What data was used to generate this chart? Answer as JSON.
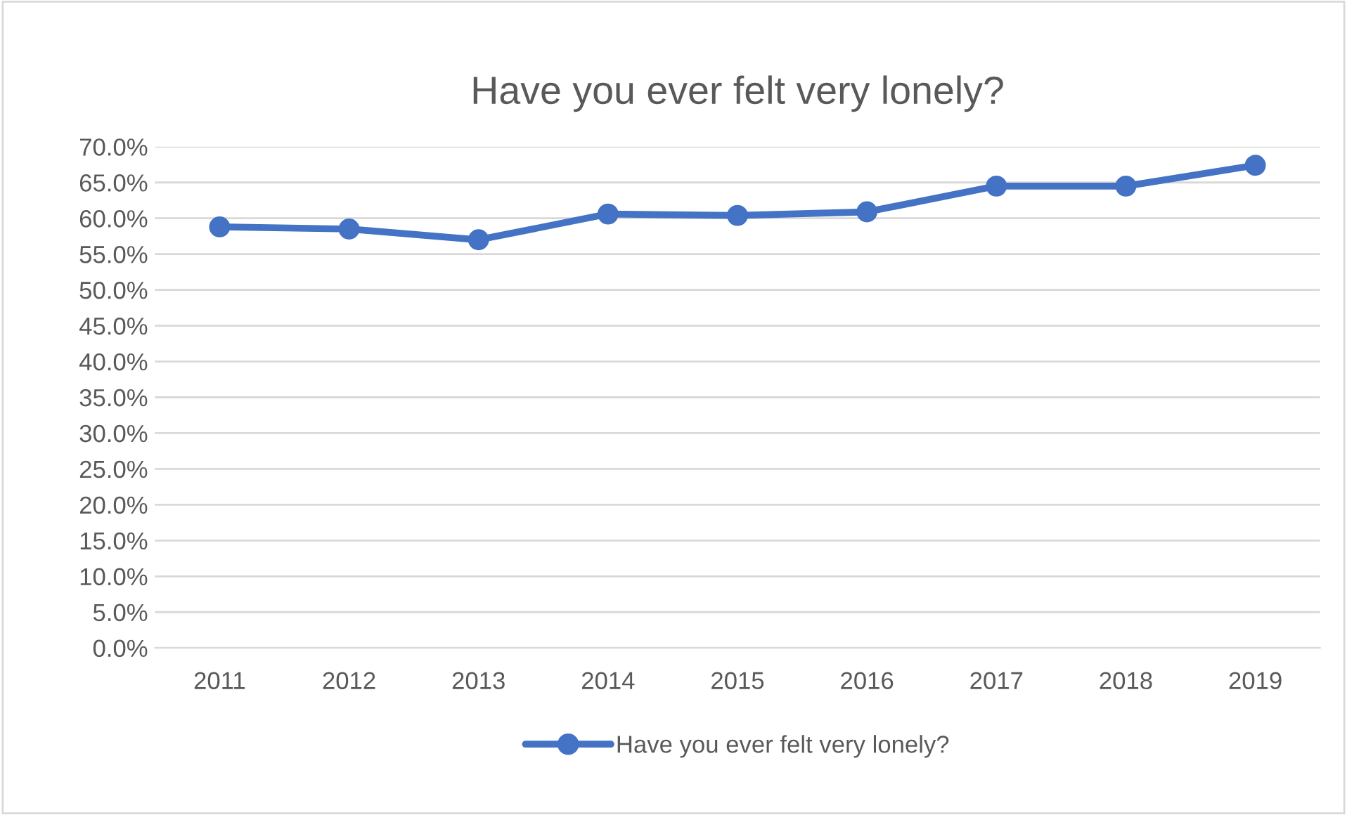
{
  "chart_data": {
    "type": "line",
    "title": "Have you ever felt very lonely?",
    "categories": [
      "2011",
      "2012",
      "2013",
      "2014",
      "2015",
      "2016",
      "2017",
      "2018",
      "2019"
    ],
    "series": [
      {
        "name": "Have you ever felt very lonely?",
        "color": "#4472c4",
        "values": [
          58.8,
          58.5,
          57.0,
          60.6,
          60.4,
          60.9,
          64.5,
          64.5,
          67.4
        ]
      }
    ],
    "ylim": [
      0,
      70
    ],
    "yticks": [
      {
        "value": 0,
        "label": "0.0%"
      },
      {
        "value": 5,
        "label": "5.0%"
      },
      {
        "value": 10,
        "label": "10.0%"
      },
      {
        "value": 15,
        "label": "15.0%"
      },
      {
        "value": 20,
        "label": "20.0%"
      },
      {
        "value": 25,
        "label": "25.0%"
      },
      {
        "value": 30,
        "label": "30.0%"
      },
      {
        "value": 35,
        "label": "35.0%"
      },
      {
        "value": 40,
        "label": "40.0%"
      },
      {
        "value": 45,
        "label": "45.0%"
      },
      {
        "value": 50,
        "label": "50.0%"
      },
      {
        "value": 55,
        "label": "55.0%"
      },
      {
        "value": 60,
        "label": "60.0%"
      },
      {
        "value": 65,
        "label": "65.0%"
      },
      {
        "value": 70,
        "label": "70.0%"
      }
    ],
    "grid": "y",
    "legend": "bottom",
    "marker": "circle",
    "line_style": "solid"
  }
}
